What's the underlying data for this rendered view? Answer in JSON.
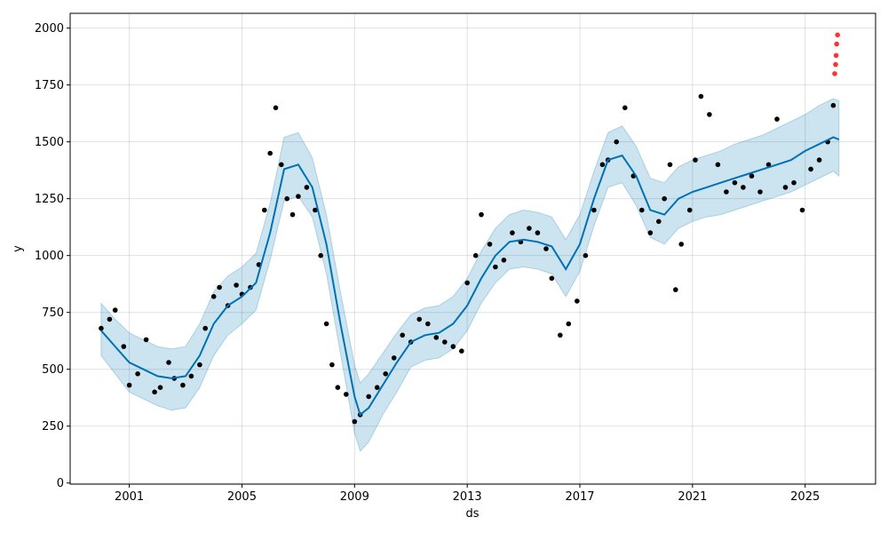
{
  "chart_data": {
    "type": "line",
    "title": "",
    "xlabel": "ds",
    "ylabel": "y",
    "xlim": [
      1998.9,
      2027.5
    ],
    "ylim": [
      -5,
      2065
    ],
    "x_ticks": [
      {
        "value": 2001,
        "label": "2001"
      },
      {
        "value": 2005,
        "label": "2005"
      },
      {
        "value": 2009,
        "label": "2009"
      },
      {
        "value": 2013,
        "label": "2013"
      },
      {
        "value": 2017,
        "label": "2017"
      },
      {
        "value": 2021,
        "label": "2021"
      },
      {
        "value": 2025,
        "label": "2025"
      }
    ],
    "y_ticks": [
      {
        "value": 0,
        "label": "0"
      },
      {
        "value": 250,
        "label": "250"
      },
      {
        "value": 500,
        "label": "500"
      },
      {
        "value": 750,
        "label": "750"
      },
      {
        "value": 1000,
        "label": "1000"
      },
      {
        "value": 1250,
        "label": "1250"
      },
      {
        "value": 1500,
        "label": "1500"
      },
      {
        "value": 1750,
        "label": "1750"
      },
      {
        "value": 2000,
        "label": "2000"
      }
    ],
    "grid": true,
    "colors": {
      "observed": "#000000",
      "forecast_line": "#0072B2",
      "uncertainty_band": "#0072B2",
      "anomalies": "#ff0000"
    },
    "series": [
      {
        "kind": "observed",
        "x": [
          2000.0,
          2000.3,
          2000.5,
          2000.8,
          2001.0,
          2001.3,
          2001.6,
          2001.9,
          2002.1,
          2002.4,
          2002.6,
          2002.9,
          2003.2,
          2003.5,
          2003.7,
          2004.0,
          2004.2,
          2004.5,
          2004.8,
          2005.0,
          2005.3,
          2005.6,
          2005.8,
          2006.0,
          2006.2,
          2006.4,
          2006.6,
          2006.8,
          2007.0,
          2007.3,
          2007.6,
          2007.8,
          2008.0,
          2008.2,
          2008.4,
          2008.7,
          2009.0,
          2009.2,
          2009.5,
          2009.8,
          2010.1,
          2010.4,
          2010.7,
          2011.0,
          2011.3,
          2011.6,
          2011.9,
          2012.2,
          2012.5,
          2012.8,
          2013.0,
          2013.3,
          2013.5,
          2013.8,
          2014.0,
          2014.3,
          2014.6,
          2014.9,
          2015.2,
          2015.5,
          2015.8,
          2016.0,
          2016.3,
          2016.6,
          2016.9,
          2017.2,
          2017.5,
          2017.8,
          2018.0,
          2018.3,
          2018.6,
          2018.9,
          2019.2,
          2019.5,
          2019.8,
          2020.0,
          2020.2,
          2020.4,
          2020.6,
          2020.9,
          2021.1,
          2021.3,
          2021.6,
          2021.9,
          2022.2,
          2022.5,
          2022.8,
          2023.1,
          2023.4,
          2023.7,
          2024.0,
          2024.3,
          2024.6,
          2024.9,
          2025.2,
          2025.5,
          2025.8,
          2026.0
        ],
        "y": [
          680,
          720,
          760,
          600,
          430,
          480,
          630,
          400,
          420,
          530,
          460,
          430,
          470,
          520,
          680,
          820,
          860,
          780,
          870,
          830,
          860,
          960,
          1200,
          1450,
          1650,
          1400,
          1250,
          1180,
          1260,
          1300,
          1200,
          1000,
          700,
          520,
          420,
          390,
          270,
          300,
          380,
          420,
          480,
          550,
          650,
          620,
          720,
          700,
          640,
          620,
          600,
          580,
          880,
          1000,
          1180,
          1050,
          950,
          980,
          1100,
          1060,
          1120,
          1100,
          1030,
          900,
          650,
          700,
          800,
          1000,
          1200,
          1400,
          1420,
          1500,
          1650,
          1350,
          1200,
          1100,
          1150,
          1250,
          1400,
          850,
          1050,
          1200,
          1420,
          1700,
          1620,
          1400,
          1280,
          1320,
          1300,
          1350,
          1280,
          1400,
          1600,
          1300,
          1320,
          1200,
          1380,
          1420,
          1500,
          1660
        ]
      },
      {
        "kind": "anomalies",
        "x": [
          2026.05,
          2026.08,
          2026.1,
          2026.12,
          2026.15
        ],
        "y": [
          1800,
          1840,
          1880,
          1930,
          1970
        ]
      },
      {
        "kind": "forecast",
        "x": [
          2000.0,
          2000.5,
          2001.0,
          2001.5,
          2002.0,
          2002.5,
          2003.0,
          2003.5,
          2004.0,
          2004.5,
          2005.0,
          2005.5,
          2006.0,
          2006.5,
          2007.0,
          2007.5,
          2008.0,
          2008.5,
          2009.0,
          2009.2,
          2009.5,
          2010.0,
          2010.5,
          2011.0,
          2011.5,
          2012.0,
          2012.5,
          2013.0,
          2013.5,
          2014.0,
          2014.5,
          2015.0,
          2015.5,
          2016.0,
          2016.5,
          2017.0,
          2017.5,
          2018.0,
          2018.5,
          2019.0,
          2019.5,
          2020.0,
          2020.5,
          2021.0,
          2021.5,
          2022.0,
          2022.5,
          2023.0,
          2023.5,
          2024.0,
          2024.5,
          2025.0,
          2025.5,
          2026.0,
          2026.2
        ],
        "y": [
          670,
          600,
          530,
          500,
          470,
          460,
          470,
          560,
          700,
          780,
          820,
          880,
          1100,
          1380,
          1400,
          1300,
          1050,
          700,
          380,
          300,
          330,
          430,
          530,
          620,
          650,
          660,
          700,
          780,
          900,
          1000,
          1060,
          1070,
          1060,
          1040,
          940,
          1050,
          1250,
          1420,
          1440,
          1350,
          1200,
          1180,
          1250,
          1280,
          1300,
          1320,
          1340,
          1360,
          1380,
          1400,
          1420,
          1460,
          1490,
          1520,
          1510
        ]
      },
      {
        "kind": "uncertainty_lower",
        "y": [
          560,
          480,
          400,
          370,
          340,
          320,
          330,
          420,
          560,
          650,
          700,
          760,
          980,
          1240,
          1260,
          1170,
          920,
          570,
          220,
          140,
          180,
          300,
          400,
          510,
          540,
          550,
          590,
          670,
          790,
          880,
          940,
          950,
          940,
          920,
          820,
          930,
          1130,
          1300,
          1320,
          1220,
          1080,
          1050,
          1120,
          1150,
          1170,
          1180,
          1200,
          1220,
          1240,
          1260,
          1280,
          1310,
          1340,
          1370,
          1350
        ]
      },
      {
        "kind": "uncertainty_upper",
        "y": [
          790,
          720,
          660,
          630,
          600,
          590,
          600,
          700,
          840,
          910,
          950,
          1010,
          1230,
          1520,
          1540,
          1430,
          1180,
          840,
          520,
          440,
          480,
          570,
          660,
          740,
          770,
          780,
          820,
          900,
          1020,
          1120,
          1180,
          1200,
          1190,
          1170,
          1070,
          1180,
          1370,
          1540,
          1570,
          1480,
          1340,
          1320,
          1390,
          1420,
          1440,
          1460,
          1490,
          1510,
          1530,
          1560,
          1590,
          1620,
          1660,
          1690,
          1680
        ]
      }
    ]
  }
}
